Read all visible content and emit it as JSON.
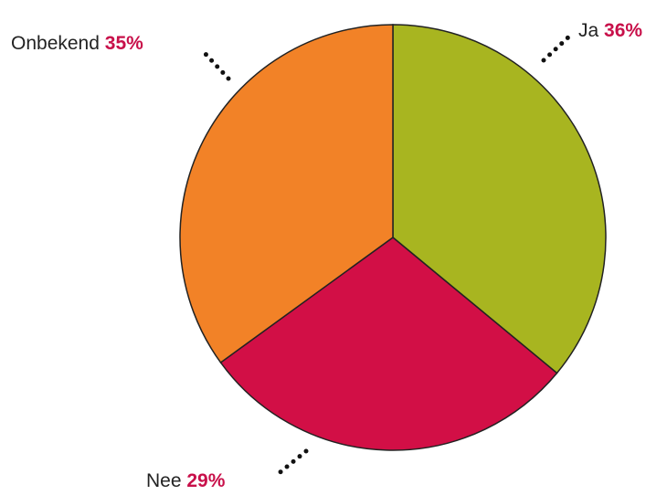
{
  "chart_data": {
    "type": "pie",
    "categories": [
      "Ja",
      "Nee",
      "Onbekend"
    ],
    "values": [
      36,
      29,
      35
    ],
    "value_labels": [
      "36%",
      "29%",
      "35%"
    ],
    "colors": [
      "#a8b520",
      "#d20f46",
      "#f28227"
    ]
  }
}
